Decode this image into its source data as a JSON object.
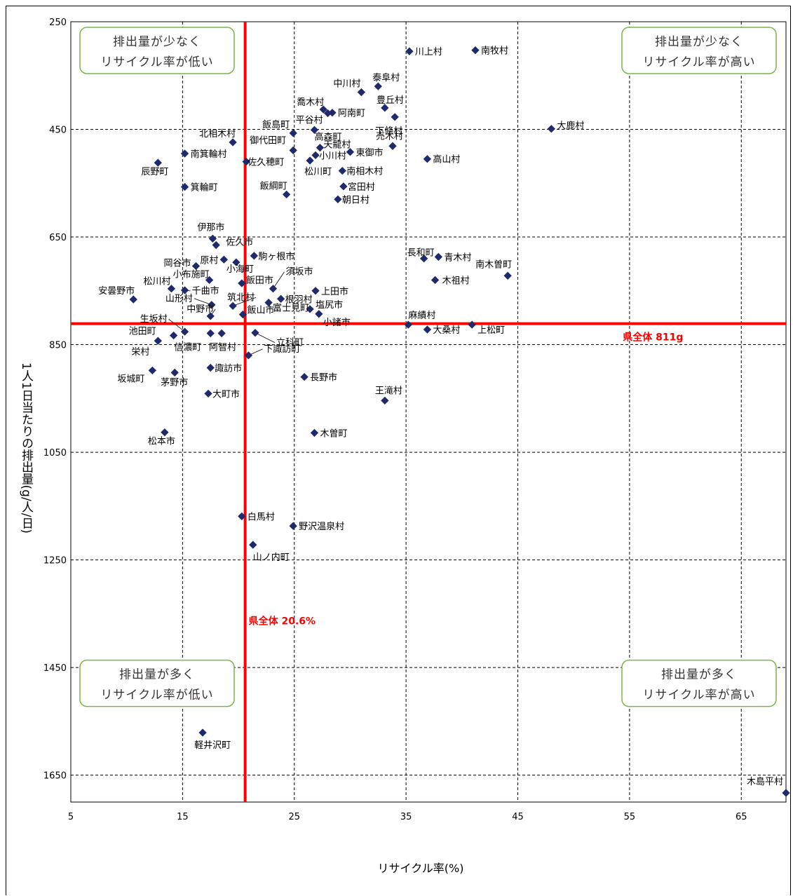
{
  "chart_data": {
    "type": "scatter",
    "xlabel": "リサイクル率(%)",
    "ylabel": "1人1日当たりの排出量(g/人/日)",
    "xlim": [
      5,
      69
    ],
    "ylim": [
      250,
      1700
    ],
    "y_inverted": true,
    "grid": true,
    "x_ticks": [
      5,
      15,
      25,
      35,
      45,
      55,
      65
    ],
    "y_ticks": [
      250,
      450,
      650,
      850,
      1050,
      1250,
      1450,
      1650
    ],
    "marker_color": "#1f2a6b",
    "reference_color": "#ff0000",
    "reference_lines": [
      {
        "axis": "x",
        "value": 20.6,
        "label": "県全体 20.6%"
      },
      {
        "axis": "y",
        "value": 811,
        "label": "県全体 811g"
      }
    ],
    "quadrant_labels": [
      {
        "position": "top-left",
        "line1": "排出量が少なく",
        "line2": "リサイクル率が低い"
      },
      {
        "position": "top-right",
        "line1": "排出量が少なく",
        "line2": "リサイクル率が高い"
      },
      {
        "position": "bottom-left",
        "line1": "排出量が多く",
        "line2": "リサイクル率が低い"
      },
      {
        "position": "bottom-right",
        "line1": "排出量が多く",
        "line2": "リサイクル率が高い"
      }
    ],
    "points": [
      {
        "name": "南牧村",
        "x": 41.2,
        "y": 303
      },
      {
        "name": "川上村",
        "x": 35.3,
        "y": 305
      },
      {
        "name": "泰阜村",
        "x": 32.5,
        "y": 370
      },
      {
        "name": "中川村",
        "x": 31.0,
        "y": 381
      },
      {
        "name": "豊丘村",
        "x": 33.1,
        "y": 410
      },
      {
        "name": "喬木村",
        "x": 27.6,
        "y": 413
      },
      {
        "name": "阿南町",
        "x": 28.4,
        "y": 419
      },
      {
        "name": "平谷村",
        "x": 28.0,
        "y": 420
      },
      {
        "name": "下條村",
        "x": 34.0,
        "y": 427
      },
      {
        "name": "大鹿村",
        "x": 48.0,
        "y": 449
      },
      {
        "name": "高森町",
        "x": 26.8,
        "y": 451
      },
      {
        "name": "飯島町",
        "x": 24.9,
        "y": 457
      },
      {
        "name": "売木村",
        "x": 33.8,
        "y": 481
      },
      {
        "name": "天龍村",
        "x": 27.3,
        "y": 484
      },
      {
        "name": "東御市",
        "x": 30.0,
        "y": 492
      },
      {
        "name": "北相木村",
        "x": 19.5,
        "y": 474
      },
      {
        "name": "御代田町",
        "x": 24.9,
        "y": 489
      },
      {
        "name": "南箕輪村",
        "x": 15.2,
        "y": 495
      },
      {
        "name": "小川村",
        "x": 26.9,
        "y": 498
      },
      {
        "name": "松川町",
        "x": 26.4,
        "y": 508
      },
      {
        "name": "高山村",
        "x": 36.9,
        "y": 505
      },
      {
        "name": "佐久穂町",
        "x": 20.7,
        "y": 510
      },
      {
        "name": "辰野町",
        "x": 12.8,
        "y": 512
      },
      {
        "name": "南相木村",
        "x": 29.3,
        "y": 527
      },
      {
        "name": "宮田村",
        "x": 29.4,
        "y": 556
      },
      {
        "name": "箕輪町",
        "x": 15.2,
        "y": 557
      },
      {
        "name": "飯綱町",
        "x": 24.3,
        "y": 571
      },
      {
        "name": "朝日村",
        "x": 28.9,
        "y": 580
      },
      {
        "name": "伊那市",
        "x": 17.7,
        "y": 653
      },
      {
        "name": "佐久市",
        "x": 18.0,
        "y": 665
      },
      {
        "name": "駒ヶ根市",
        "x": 21.4,
        "y": 685
      },
      {
        "name": "原村",
        "x": 18.7,
        "y": 692
      },
      {
        "name": "小海町",
        "x": 19.8,
        "y": 697
      },
      {
        "name": "岡谷市",
        "x": 16.2,
        "y": 704
      },
      {
        "name": "長和町",
        "x": 36.6,
        "y": 690
      },
      {
        "name": "青木村",
        "x": 37.9,
        "y": 687
      },
      {
        "name": "南木曽町",
        "x": 44.1,
        "y": 722
      },
      {
        "name": "小布施町",
        "x": 17.4,
        "y": 730
      },
      {
        "name": "木祖村",
        "x": 37.6,
        "y": 730
      },
      {
        "name": "飯田市",
        "x": 20.3,
        "y": 736
      },
      {
        "name": "松川村",
        "x": 14.0,
        "y": 746
      },
      {
        "name": "須坂市",
        "x": 23.1,
        "y": 746
      },
      {
        "name": "千曲市",
        "x": 15.2,
        "y": 749
      },
      {
        "name": "上田市",
        "x": 26.9,
        "y": 750
      },
      {
        "name": "安曇野市",
        "x": 10.6,
        "y": 766
      },
      {
        "name": "根羽村",
        "x": 23.8,
        "y": 765
      },
      {
        "name": "筑北村",
        "x": 19.5,
        "y": 778
      },
      {
        "name": "山形村",
        "x": 17.6,
        "y": 776
      },
      {
        "name": "富士見町",
        "x": 22.7,
        "y": 772
      },
      {
        "name": "塩尻市",
        "x": 26.4,
        "y": 784
      },
      {
        "name": "小諸市",
        "x": 27.2,
        "y": 793
      },
      {
        "name": "中野市",
        "x": 17.5,
        "y": 797
      },
      {
        "name": "飯山市",
        "x": 20.4,
        "y": 794
      },
      {
        "name": "麻績村",
        "x": 35.2,
        "y": 813
      },
      {
        "name": "大桑村",
        "x": 36.9,
        "y": 822
      },
      {
        "name": "上松町",
        "x": 40.9,
        "y": 813
      },
      {
        "name": "生坂村",
        "x": 15.2,
        "y": 826
      },
      {
        "name": "立科町",
        "x": 21.5,
        "y": 828
      },
      {
        "name": "池田町",
        "x": 14.2,
        "y": 833
      },
      {
        "name": "信濃町",
        "x": 17.5,
        "y": 829
      },
      {
        "name": "阿智村",
        "x": 18.5,
        "y": 829
      },
      {
        "name": "栄村",
        "x": 12.8,
        "y": 843
      },
      {
        "name": "下諏訪町",
        "x": 20.9,
        "y": 870
      },
      {
        "name": "諏訪市",
        "x": 17.5,
        "y": 893
      },
      {
        "name": "坂城町",
        "x": 12.3,
        "y": 898
      },
      {
        "name": "茅野市",
        "x": 14.3,
        "y": 902
      },
      {
        "name": "長野市",
        "x": 25.9,
        "y": 910
      },
      {
        "name": "大町市",
        "x": 17.3,
        "y": 941
      },
      {
        "name": "王滝村",
        "x": 33.1,
        "y": 954
      },
      {
        "name": "木曽町",
        "x": 26.8,
        "y": 1014
      },
      {
        "name": "松本市",
        "x": 13.4,
        "y": 1013
      },
      {
        "name": "白馬村",
        "x": 20.3,
        "y": 1169
      },
      {
        "name": "野沢温泉村",
        "x": 24.9,
        "y": 1187
      },
      {
        "name": "山ノ内町",
        "x": 21.3,
        "y": 1222
      },
      {
        "name": "軽井沢町",
        "x": 16.8,
        "y": 1571
      },
      {
        "name": "木島平村",
        "x": 69.0,
        "y": 1683
      }
    ]
  }
}
